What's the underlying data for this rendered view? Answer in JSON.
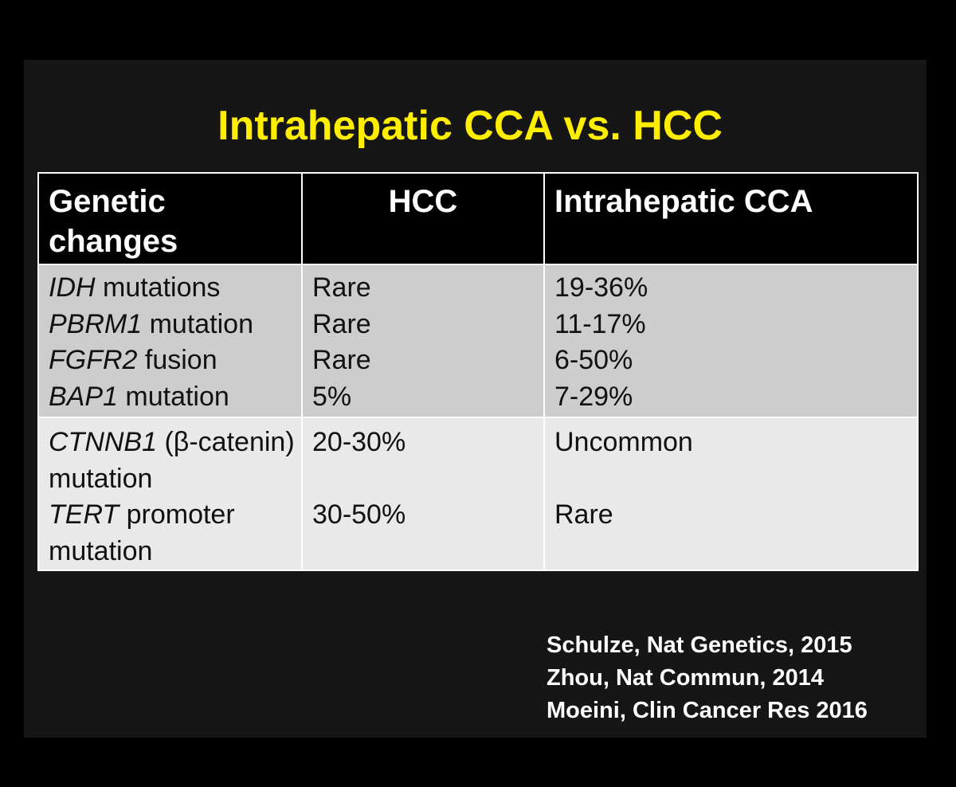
{
  "slide": {
    "title": "Intrahepatic CCA vs. HCC",
    "table": {
      "headers": [
        "Genetic changes",
        "HCC",
        "Intrahepatic CCA"
      ],
      "group1": [
        {
          "gene": "IDH",
          "desc": " mutations",
          "hcc": "Rare",
          "icca": "19-36%"
        },
        {
          "gene": "PBRM1",
          "desc": " mutation",
          "hcc": "Rare",
          "icca": "11-17%"
        },
        {
          "gene": "FGFR2",
          "desc": " fusion",
          "hcc": "Rare",
          "icca": "6-50%"
        },
        {
          "gene": "BAP1",
          "desc": " mutation",
          "hcc": "5%",
          "icca": "7-29%"
        }
      ],
      "group2": [
        {
          "gene": "CTNNB1",
          "desc": " (β-catenin) mutation",
          "hcc": "20-30%",
          "icca": "Uncommon"
        },
        {
          "gene": "TERT",
          "desc": " promoter mutation",
          "hcc": "30-50%",
          "icca": "Rare"
        }
      ]
    },
    "references": [
      "Schulze, Nat Genetics, 2015",
      "Zhou, Nat Commun, 2014",
      "Moeini, Clin Cancer Res 2016"
    ]
  }
}
